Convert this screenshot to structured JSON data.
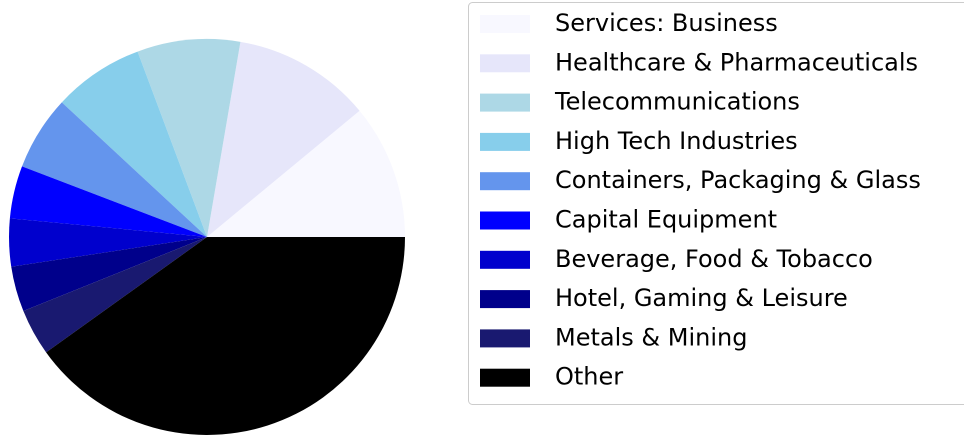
{
  "chart_data": {
    "type": "pie",
    "categories": [
      "Services: Business",
      "Healthcare & Pharmaceuticals",
      "Telecommunications",
      "High Tech Industries",
      "Containers, Packaging & Glass",
      "Capital Equipment",
      "Beverage, Food & Tobacco",
      "Hotel, Gaming & Leisure",
      "Metals & Mining",
      "Other"
    ],
    "values": [
      11,
      11.3,
      8.4,
      7.4,
      6.1,
      4.3,
      3.9,
      3.7,
      3.8,
      40.1
    ],
    "colors": [
      "#f8f8ff",
      "#e6e6fa",
      "#add8e6",
      "#87ceeb",
      "#6495ed",
      "#0000ff",
      "#0000cd",
      "#00008b",
      "#191970",
      "#000000"
    ],
    "legend": "right"
  }
}
